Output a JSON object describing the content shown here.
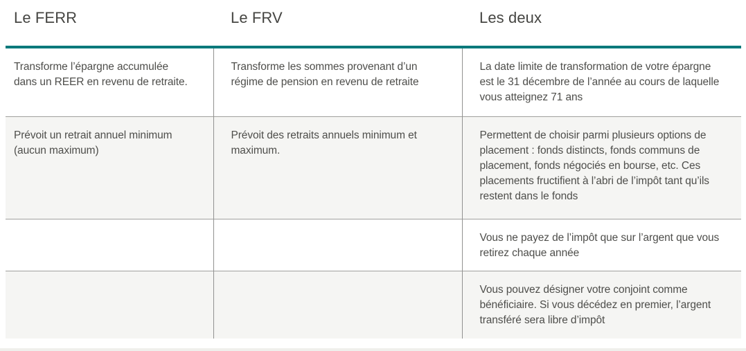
{
  "comparison_table": {
    "columns": [
      {
        "header": "Le FERR"
      },
      {
        "header": "Le FRV"
      },
      {
        "header": "Les deux"
      }
    ],
    "rows": [
      {
        "cells": [
          "Transforme l’épargne accumulée dans un REER en revenu de retraite.",
          "Transforme les sommes provenant d’un régime de pension en revenu de retraite",
          "La date limite de transformation de votre épargne est le 31 décembre de l’année au cours de laquelle vous atteignez 71 ans"
        ]
      },
      {
        "cells": [
          "Prévoit un retrait annuel minimum (aucun maximum)",
          "Prévoit des retraits annuels minimum et maximum.",
          "Permettent de choisir parmi plusieurs options de placement : fonds distincts, fonds communs de placement, fonds négociés en bourse, etc. Ces placements fructifient à l’abri de l’impôt tant qu’ils restent dans le fonds"
        ]
      },
      {
        "cells": [
          "",
          "",
          "Vous ne payez de l’impôt que sur l’argent que vous retirez chaque année"
        ]
      },
      {
        "cells": [
          "",
          "",
          "Vous pouvez désigner votre conjoint comme bénéficiaire. Si vous décédez en premier, l’argent transféré sera libre d’impôt"
        ]
      }
    ],
    "colors": {
      "accent_teal": "#00797b",
      "row_alt_background": "#f5f5f3",
      "vertical_border": "#919190",
      "horizontal_border": "#a0a09d",
      "text": "#4e4e4b",
      "bottom_divider": "#efefec"
    }
  }
}
